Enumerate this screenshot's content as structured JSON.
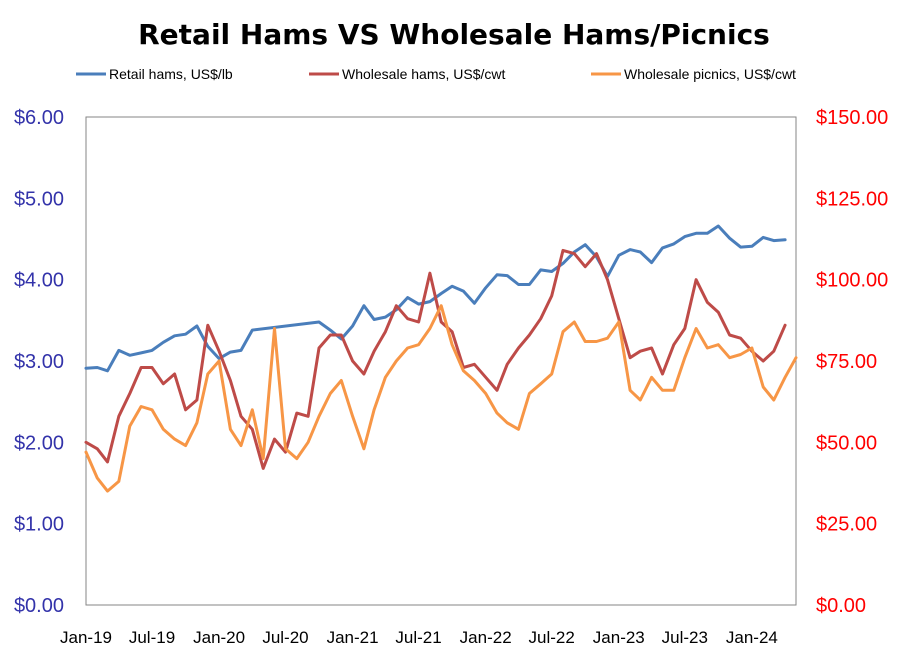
{
  "chart_data": {
    "type": "line",
    "title": "Retail Hams VS Wholesale Hams/Picnics",
    "legend_position": "top",
    "grid": false,
    "x_tick_labels": [
      "Jan-19",
      "Jul-19",
      "Jan-20",
      "Jul-20",
      "Jan-21",
      "Jul-21",
      "Jan-22",
      "Jul-22",
      "Jan-23",
      "Jul-23",
      "Jan-24"
    ],
    "y_left": {
      "ylim": [
        0,
        6
      ],
      "tick_labels": [
        "$0.00",
        "$1.00",
        "$2.00",
        "$3.00",
        "$4.00",
        "$5.00",
        "$6.00"
      ],
      "color": "#3333aa"
    },
    "y_right": {
      "ylim": [
        0,
        150
      ],
      "tick_labels": [
        "$0.00",
        "$25.00",
        "$50.00",
        "$75.00",
        "$100.00",
        "$125.00",
        "$150.00"
      ],
      "color": "#ff0000"
    },
    "series": [
      {
        "name": "Retail hams, US$/lb",
        "axis": "left",
        "color": "#4a7ebb",
        "points": [
          [
            "2019-01-01",
            2.91
          ],
          [
            "2019-02-01",
            2.92
          ],
          [
            "2019-03-01",
            2.88
          ],
          [
            "2019-04-01",
            3.13
          ],
          [
            "2019-05-01",
            3.07
          ],
          [
            "2019-06-01",
            3.1
          ],
          [
            "2019-07-01",
            3.13
          ],
          [
            "2019-08-01",
            3.23
          ],
          [
            "2019-09-01",
            3.31
          ],
          [
            "2019-10-01",
            3.33
          ],
          [
            "2019-11-01",
            3.43
          ],
          [
            "2019-12-01",
            3.18
          ],
          [
            "2020-01-01",
            3.03
          ],
          [
            "2020-02-01",
            3.11
          ],
          [
            "2020-03-01",
            3.13
          ],
          [
            "2020-04-01",
            3.38
          ],
          [
            "2020-10-01",
            3.48
          ],
          [
            "2020-11-01",
            3.38
          ],
          [
            "2020-12-01",
            3.27
          ],
          [
            "2021-01-01",
            3.43
          ],
          [
            "2021-02-01",
            3.68
          ],
          [
            "2021-03-01",
            3.51
          ],
          [
            "2021-04-01",
            3.54
          ],
          [
            "2021-05-01",
            3.63
          ],
          [
            "2021-06-01",
            3.78
          ],
          [
            "2021-07-01",
            3.7
          ],
          [
            "2021-08-01",
            3.73
          ],
          [
            "2021-09-01",
            3.83
          ],
          [
            "2021-10-01",
            3.92
          ],
          [
            "2021-11-01",
            3.86
          ],
          [
            "2021-12-01",
            3.71
          ],
          [
            "2022-01-01",
            3.9
          ],
          [
            "2022-02-01",
            4.06
          ],
          [
            "2022-03-01",
            4.05
          ],
          [
            "2022-04-01",
            3.94
          ],
          [
            "2022-05-01",
            3.94
          ],
          [
            "2022-06-01",
            4.12
          ],
          [
            "2022-07-01",
            4.1
          ],
          [
            "2022-08-01",
            4.2
          ],
          [
            "2022-09-01",
            4.34
          ],
          [
            "2022-10-01",
            4.43
          ],
          [
            "2022-11-01",
            4.28
          ],
          [
            "2022-12-01",
            4.04
          ],
          [
            "2023-01-01",
            4.3
          ],
          [
            "2023-02-01",
            4.37
          ],
          [
            "2023-03-01",
            4.34
          ],
          [
            "2023-04-01",
            4.21
          ],
          [
            "2023-05-01",
            4.39
          ],
          [
            "2023-06-01",
            4.44
          ],
          [
            "2023-07-01",
            4.53
          ],
          [
            "2023-08-01",
            4.57
          ],
          [
            "2023-09-01",
            4.57
          ],
          [
            "2023-10-01",
            4.66
          ],
          [
            "2023-11-01",
            4.51
          ],
          [
            "2023-12-01",
            4.4
          ],
          [
            "2024-01-01",
            4.41
          ],
          [
            "2024-02-01",
            4.52
          ],
          [
            "2024-03-01",
            4.48
          ],
          [
            "2024-04-01",
            4.49
          ]
        ]
      },
      {
        "name": "Wholesale hams, US$/cwt",
        "axis": "right",
        "color": "#be4b48",
        "points": [
          [
            "2019-01-01",
            50
          ],
          [
            "2019-02-01",
            48
          ],
          [
            "2019-03-01",
            44
          ],
          [
            "2019-04-01",
            58
          ],
          [
            "2019-05-01",
            65
          ],
          [
            "2019-06-01",
            73
          ],
          [
            "2019-07-01",
            73
          ],
          [
            "2019-08-01",
            68
          ],
          [
            "2019-09-01",
            71
          ],
          [
            "2019-10-01",
            60
          ],
          [
            "2019-11-01",
            63
          ],
          [
            "2019-12-01",
            86
          ],
          [
            "2020-01-01",
            78
          ],
          [
            "2020-02-01",
            69
          ],
          [
            "2020-03-01",
            58
          ],
          [
            "2020-04-01",
            54
          ],
          [
            "2020-05-01",
            42
          ],
          [
            "2020-06-01",
            51
          ],
          [
            "2020-07-01",
            47
          ],
          [
            "2020-08-01",
            59
          ],
          [
            "2020-09-01",
            58
          ],
          [
            "2020-10-01",
            79
          ],
          [
            "2020-11-01",
            83
          ],
          [
            "2020-12-01",
            83
          ],
          [
            "2021-01-01",
            75
          ],
          [
            "2021-02-01",
            71
          ],
          [
            "2021-03-01",
            78
          ],
          [
            "2021-04-01",
            84
          ],
          [
            "2021-05-01",
            92
          ],
          [
            "2021-06-01",
            88
          ],
          [
            "2021-07-01",
            87
          ],
          [
            "2021-08-01",
            102
          ],
          [
            "2021-09-01",
            87
          ],
          [
            "2021-10-01",
            84
          ],
          [
            "2021-11-01",
            73
          ],
          [
            "2021-12-01",
            74
          ],
          [
            "2022-01-01",
            70
          ],
          [
            "2022-02-01",
            66
          ],
          [
            "2022-03-01",
            74
          ],
          [
            "2022-04-01",
            79
          ],
          [
            "2022-05-01",
            83
          ],
          [
            "2022-06-01",
            88
          ],
          [
            "2022-07-01",
            95
          ],
          [
            "2022-08-01",
            109
          ],
          [
            "2022-09-01",
            108
          ],
          [
            "2022-10-01",
            104
          ],
          [
            "2022-11-01",
            108
          ],
          [
            "2022-12-01",
            100
          ],
          [
            "2023-01-01",
            88
          ],
          [
            "2023-02-01",
            76
          ],
          [
            "2023-03-01",
            78
          ],
          [
            "2023-04-01",
            79
          ],
          [
            "2023-05-01",
            71
          ],
          [
            "2023-06-01",
            80
          ],
          [
            "2023-07-01",
            85
          ],
          [
            "2023-08-01",
            100
          ],
          [
            "2023-09-01",
            93
          ],
          [
            "2023-10-01",
            90
          ],
          [
            "2023-11-01",
            83
          ],
          [
            "2023-12-01",
            82
          ],
          [
            "2024-01-01",
            78
          ],
          [
            "2024-02-01",
            75
          ],
          [
            "2024-03-01",
            78
          ],
          [
            "2024-04-01",
            86
          ]
        ]
      },
      {
        "name": "Wholesale picnics, US$/cwt",
        "axis": "right",
        "color": "#f79646",
        "points": [
          [
            "2019-01-01",
            47
          ],
          [
            "2019-02-01",
            39
          ],
          [
            "2019-03-01",
            35
          ],
          [
            "2019-04-01",
            38
          ],
          [
            "2019-05-01",
            55
          ],
          [
            "2019-06-01",
            61
          ],
          [
            "2019-07-01",
            60
          ],
          [
            "2019-08-01",
            54
          ],
          [
            "2019-09-01",
            51
          ],
          [
            "2019-10-01",
            49
          ],
          [
            "2019-11-01",
            56
          ],
          [
            "2019-12-01",
            71
          ],
          [
            "2020-01-01",
            75
          ],
          [
            "2020-02-01",
            54
          ],
          [
            "2020-03-01",
            49
          ],
          [
            "2020-04-01",
            60
          ],
          [
            "2020-05-01",
            45
          ],
          [
            "2020-06-01",
            85
          ],
          [
            "2020-07-01",
            48
          ],
          [
            "2020-08-01",
            45
          ],
          [
            "2020-09-01",
            50
          ],
          [
            "2020-10-01",
            58
          ],
          [
            "2020-11-01",
            65
          ],
          [
            "2020-12-01",
            69
          ],
          [
            "2021-01-01",
            58
          ],
          [
            "2021-02-01",
            48
          ],
          [
            "2021-03-01",
            60
          ],
          [
            "2021-04-01",
            70
          ],
          [
            "2021-05-01",
            75
          ],
          [
            "2021-06-01",
            79
          ],
          [
            "2021-07-01",
            80
          ],
          [
            "2021-08-01",
            85
          ],
          [
            "2021-09-01",
            92
          ],
          [
            "2021-10-01",
            80
          ],
          [
            "2021-11-01",
            72
          ],
          [
            "2021-12-01",
            69
          ],
          [
            "2022-01-01",
            65
          ],
          [
            "2022-02-01",
            59
          ],
          [
            "2022-03-01",
            56
          ],
          [
            "2022-04-01",
            54
          ],
          [
            "2022-05-01",
            65
          ],
          [
            "2022-06-01",
            68
          ],
          [
            "2022-07-01",
            71
          ],
          [
            "2022-08-01",
            84
          ],
          [
            "2022-09-01",
            87
          ],
          [
            "2022-10-01",
            81
          ],
          [
            "2022-11-01",
            81
          ],
          [
            "2022-12-01",
            82
          ],
          [
            "2023-01-01",
            87
          ],
          [
            "2023-02-01",
            66
          ],
          [
            "2023-03-01",
            63
          ],
          [
            "2023-04-01",
            70
          ],
          [
            "2023-05-01",
            66
          ],
          [
            "2023-06-01",
            66
          ],
          [
            "2023-07-01",
            76
          ],
          [
            "2023-08-01",
            85
          ],
          [
            "2023-09-01",
            79
          ],
          [
            "2023-10-01",
            80
          ],
          [
            "2023-11-01",
            76
          ],
          [
            "2023-12-01",
            77
          ],
          [
            "2024-01-01",
            79
          ],
          [
            "2024-02-01",
            67
          ],
          [
            "2024-03-01",
            63
          ],
          [
            "2024-04-01",
            70
          ],
          [
            "2024-05-01",
            76
          ]
        ]
      }
    ]
  }
}
